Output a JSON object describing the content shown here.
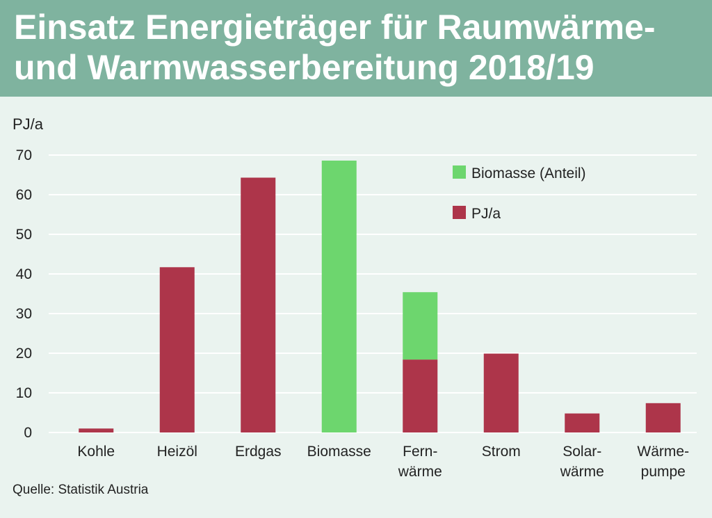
{
  "header": {
    "title": "Einsatz Energieträger für Raumwärme-\nund Warmwasserbereitung 2018/19",
    "bg_color": "#7fb39f"
  },
  "source": "Quelle: Statistik Austria",
  "chart_data": {
    "type": "bar",
    "stacked": true,
    "title": "Einsatz Energieträger für Raumwärme- und Warmwasserbereitung 2018/19",
    "ylabel": "PJ/a",
    "ylim": [
      0,
      70
    ],
    "yticks": [
      0,
      10,
      20,
      30,
      40,
      50,
      60,
      70
    ],
    "grid": true,
    "legend_position": "top-right",
    "categories": [
      [
        "Kohle"
      ],
      [
        "Heizöl"
      ],
      [
        "Erdgas"
      ],
      [
        "Biomasse"
      ],
      [
        "Fern-",
        "wärme"
      ],
      [
        "Strom"
      ],
      [
        "Solar-",
        "wärme"
      ],
      [
        "Wärme-",
        "pumpe"
      ]
    ],
    "series": [
      {
        "name": "PJ/a",
        "color": "#ad354a",
        "values": [
          1,
          41.7,
          64.3,
          0,
          18.4,
          19.9,
          4.8,
          7.4
        ]
      },
      {
        "name": "Biomasse (Anteil)",
        "color": "#6dd66e",
        "values": [
          0,
          0,
          0,
          68.6,
          17.0,
          0,
          0,
          0
        ]
      }
    ],
    "legend": [
      "Biomasse (Anteil)",
      "PJ/a"
    ]
  }
}
